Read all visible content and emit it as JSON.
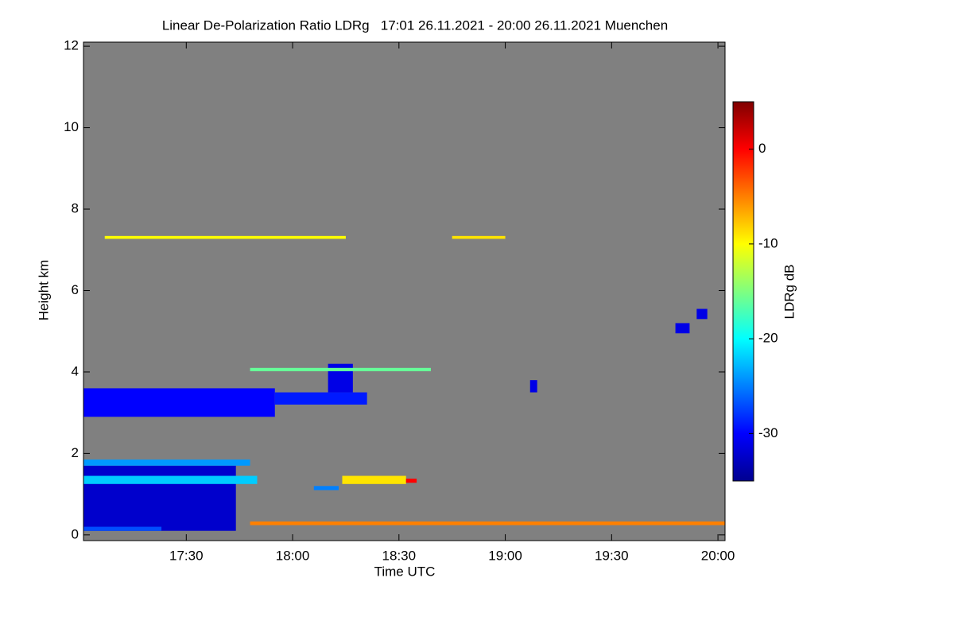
{
  "chart_data": {
    "type": "heatmap",
    "title": "Linear De-Polarization Ratio LDRg   17:01 26.11.2021 - 20:00 26.11.2021 Muenchen",
    "x_label": "Time UTC",
    "y_label": "Height km",
    "colorbar_label": "LDRg dB",
    "background": "#808080",
    "colormap": "jet",
    "xlim": [
      1021,
      1202
    ],
    "xticks": [
      {
        "value": 1050,
        "label": "17:30"
      },
      {
        "value": 1080,
        "label": "18:00"
      },
      {
        "value": 1110,
        "label": "18:30"
      },
      {
        "value": 1140,
        "label": "19:00"
      },
      {
        "value": 1170,
        "label": "19:30"
      },
      {
        "value": 1200,
        "label": "20:00"
      }
    ],
    "ylim": [
      -0.14,
      12.1
    ],
    "yticks": [
      0,
      2,
      4,
      6,
      8,
      10,
      12
    ],
    "clim": [
      -35,
      5
    ],
    "cticks": [
      0,
      -10,
      -20,
      -30
    ],
    "cells": [
      {
        "t0": 1021,
        "t1": 1064,
        "h0": 0.1,
        "h1": 1.7,
        "value": -32
      },
      {
        "t0": 1021,
        "t1": 1043,
        "h0": 0.1,
        "h1": 0.2,
        "value": -27
      },
      {
        "t0": 1021,
        "t1": 1070,
        "h0": 1.25,
        "h1": 1.45,
        "value": -22
      },
      {
        "t0": 1021,
        "t1": 1068,
        "h0": 1.7,
        "h1": 1.85,
        "value": -24
      },
      {
        "t0": 1021,
        "t1": 1075,
        "h0": 2.9,
        "h1": 3.6,
        "value": -30
      },
      {
        "t0": 1075,
        "t1": 1101,
        "h0": 3.2,
        "h1": 3.5,
        "value": -29
      },
      {
        "t0": 1090,
        "t1": 1097,
        "h0": 3.5,
        "h1": 4.2,
        "value": -31
      },
      {
        "t0": 1068,
        "t1": 1119,
        "h0": 4.02,
        "h1": 4.1,
        "value": -16
      },
      {
        "t0": 1027,
        "t1": 1095,
        "h0": 7.27,
        "h1": 7.34,
        "value": -10
      },
      {
        "t0": 1125,
        "t1": 1140,
        "h0": 7.27,
        "h1": 7.34,
        "value": -9
      },
      {
        "t0": 1094,
        "t1": 1112,
        "h0": 1.25,
        "h1": 1.45,
        "value": -9
      },
      {
        "t0": 1112,
        "t1": 1115,
        "h0": 1.28,
        "h1": 1.38,
        "value": 0
      },
      {
        "t0": 1086,
        "t1": 1093,
        "h0": 1.1,
        "h1": 1.2,
        "value": -25
      },
      {
        "t0": 1068,
        "t1": 1202,
        "h0": 0.24,
        "h1": 0.33,
        "value": -5
      },
      {
        "t0": 1147,
        "t1": 1149,
        "h0": 3.5,
        "h1": 3.8,
        "value": -31
      },
      {
        "t0": 1188,
        "t1": 1192,
        "h0": 4.95,
        "h1": 5.2,
        "value": -31
      },
      {
        "t0": 1194,
        "t1": 1197,
        "h0": 5.3,
        "h1": 5.55,
        "value": -31
      }
    ]
  }
}
